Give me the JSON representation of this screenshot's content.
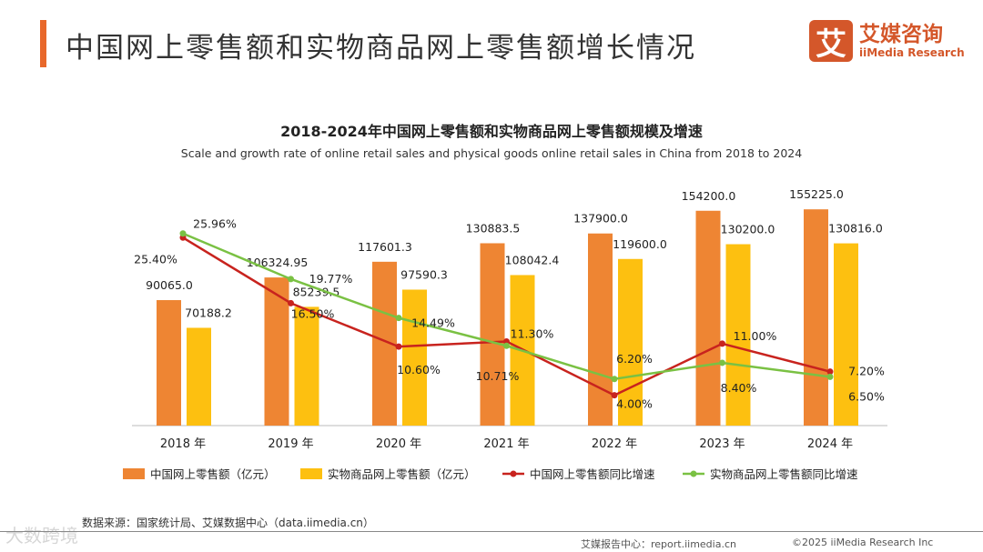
{
  "header": {
    "title": "中国网上零售额和实物商品网上零售额增长情况",
    "logo_mark": "艾",
    "logo_cn": "艾媒咨询",
    "logo_en": "iiMedia Research"
  },
  "chart_data": {
    "type": "bar+line",
    "title": "2018-2024年中国网上零售额和实物商品网上零售额规模及增速",
    "subtitle": "Scale and growth rate of online retail sales and physical goods online retail sales in China from 2018 to 2024",
    "categories": [
      "2018 年",
      "2019 年",
      "2020 年",
      "2021 年",
      "2022 年",
      "2023 年",
      "2024 年"
    ],
    "series": [
      {
        "name": "中国网上零售额（亿元）",
        "type": "bar",
        "color": "#ee8533",
        "values": [
          90065.0,
          106324.95,
          117601.3,
          130883.5,
          137900.0,
          154200.0,
          155225.0
        ],
        "labels": [
          "90065.0",
          "106324.95",
          "117601.3",
          "130883.5",
          "137900.0",
          "154200.0",
          "155225.0"
        ]
      },
      {
        "name": "实物商品网上零售额（亿元）",
        "type": "bar",
        "color": "#fdc010",
        "values": [
          70188.2,
          85239.5,
          97590.3,
          108042.4,
          119600.0,
          130200.0,
          130816.0
        ],
        "labels": [
          "70188.2",
          "85239.5",
          "97590.3",
          "108042.4",
          "119600.0",
          "130200.0",
          "130816.0"
        ]
      },
      {
        "name": "中国网上零售额同比增速",
        "type": "line",
        "color": "#c8231e",
        "values": [
          25.4,
          16.5,
          10.6,
          11.3,
          4.0,
          11.0,
          7.2
        ],
        "labels": [
          "25.40%",
          "16.50%",
          "10.60%",
          "11.30%",
          "4.00%",
          "11.00%",
          "7.20%"
        ]
      },
      {
        "name": "实物商品网上零售额同比增速",
        "type": "line",
        "color": "#7ac143",
        "values": [
          25.96,
          19.77,
          14.49,
          10.71,
          6.2,
          8.4,
          6.5
        ],
        "labels": [
          "25.96%",
          "19.77%",
          "14.49%",
          "10.71%",
          "6.20%",
          "8.40%",
          "6.50%"
        ]
      }
    ],
    "legend": "bottom"
  },
  "footer": {
    "source": "数据来源：国家统计局、艾媒数据中心（data.iimedia.cn）",
    "report": "艾媒报告中心：report.iimedia.cn",
    "copyright": "©2025  iiMedia Research  Inc",
    "watermark": "大数跨境"
  }
}
